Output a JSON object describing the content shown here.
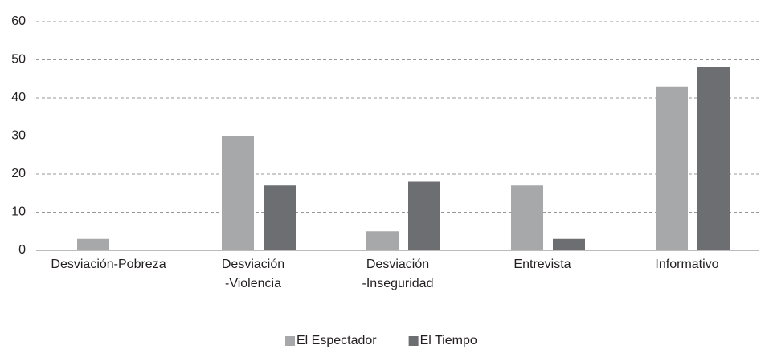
{
  "chart_data": {
    "type": "bar",
    "categories": [
      [
        "Desviación-Pobreza"
      ],
      [
        "Desviación",
        "-Violencia"
      ],
      [
        "Desviación",
        "-Inseguridad"
      ],
      [
        "Entrevista"
      ],
      [
        "Informativo"
      ]
    ],
    "series": [
      {
        "name": "El Espectador",
        "color": "#a7a8aa",
        "values": [
          3,
          30,
          5,
          17,
          43
        ]
      },
      {
        "name": "El Tiempo",
        "color": "#6d6e71",
        "values": [
          0,
          17,
          18,
          3,
          48
        ]
      }
    ],
    "ylim": [
      0,
      60
    ],
    "yticks": [
      0,
      10,
      20,
      30,
      40,
      50,
      60
    ],
    "grid": true,
    "legend": "bottom"
  }
}
